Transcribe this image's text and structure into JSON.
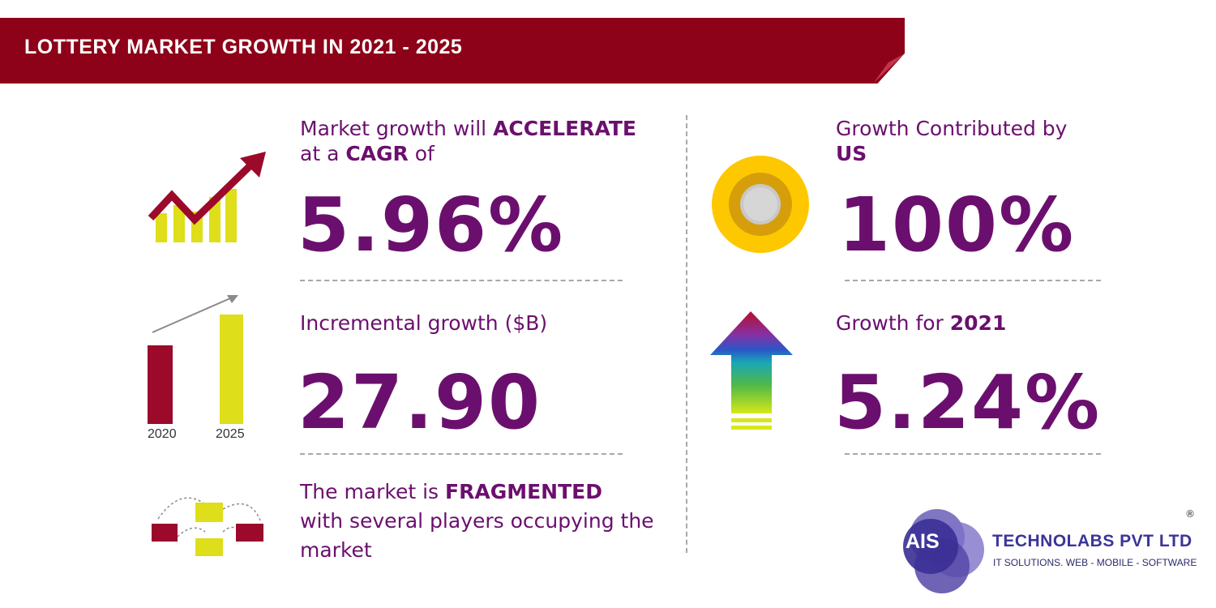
{
  "banner": {
    "title": "LOTTERY MARKET GROWTH IN 2021 - 2025"
  },
  "cagr": {
    "line1_prefix": "Market growth will ",
    "line1_bold": "ACCELERATE",
    "line2_prefix": "at a ",
    "line2_bold": "CAGR",
    "line2_suffix": " of",
    "value": "5.96%"
  },
  "incremental": {
    "label": "Incremental growth ($B)",
    "value": "27.90",
    "years": [
      "2020",
      "2025"
    ]
  },
  "fragmented": {
    "line1_prefix": "The market is ",
    "line1_bold": "FRAGMENTED",
    "line2": "with several players occupying the",
    "line3": "market"
  },
  "us_contribution": {
    "line1": "Growth Contributed by",
    "line2_bold": "US",
    "value": "100%"
  },
  "yoy": {
    "label_prefix": "Growth for ",
    "label_bold": "2021",
    "value": "5.24%"
  },
  "logo": {
    "badge": "AIS",
    "name": "TECHNOLABS PVT LTD",
    "tagline": "IT SOLUTIONS. WEB - MOBILE - SOFTWARE",
    "registered": "®"
  },
  "colors": {
    "banner": "#8d0119",
    "text": "#6b0f6e",
    "accent_yellow": "#dede1a",
    "accent_red": "#9b0a2a",
    "logo_blue": "#3b3599"
  },
  "icons": [
    "trend-arrow-icon",
    "bar-growth-icon",
    "buildings-network-icon",
    "target-coin-icon",
    "rainbow-up-arrow-icon"
  ]
}
